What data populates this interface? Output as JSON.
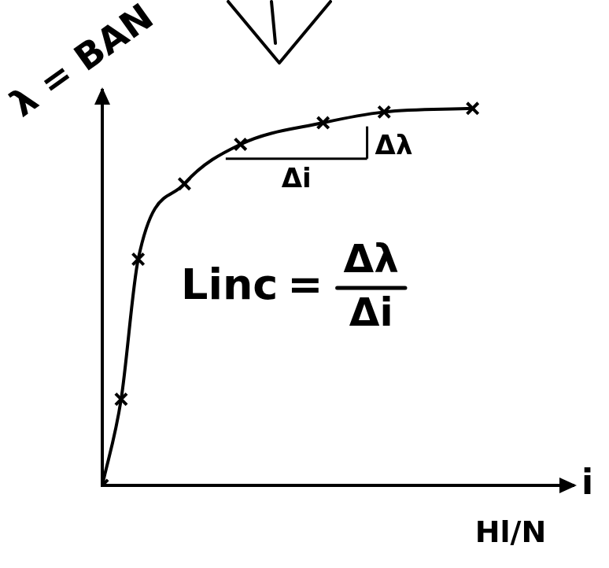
{
  "chart_data": {
    "type": "line",
    "ylabel": "λ = BAN",
    "xlabel": "i",
    "xlabel_note": "Hl/N",
    "x": [
      0,
      0.42,
      0.8,
      1.83,
      3.08,
      4.92,
      6.28,
      8.25
    ],
    "values": [
      0,
      2.4,
      6.3,
      8.4,
      9.5,
      10.1,
      10.4,
      10.5
    ],
    "color": "#000000",
    "marker": "x",
    "line_style": "solid",
    "xlim": [
      0,
      10.5
    ],
    "ylim": [
      0,
      11
    ],
    "grid": false,
    "tick_labels": false,
    "increment": {
      "x": [
        2.75,
        5.9
      ],
      "y": [
        9.1,
        10.0
      ],
      "x_label": "Δi",
      "y_label": "Δλ"
    },
    "equation": {
      "lhs": "Linc",
      "numerator": "Δλ",
      "denominator": "Δi"
    }
  }
}
